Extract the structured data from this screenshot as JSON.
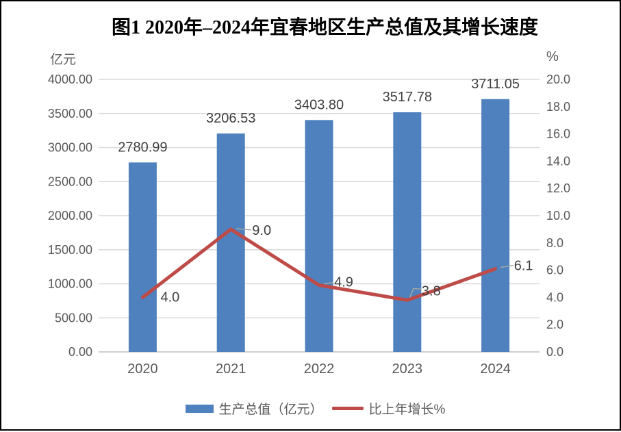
{
  "title": "图1 2020年–2024年宜春地区生产总值及其增长速度",
  "left_axis_unit": "亿元",
  "right_axis_unit": "%",
  "legend": {
    "bar_label": "生产总值（亿元）",
    "line_label": "比上年增长%"
  },
  "colors": {
    "bar": "#4E81BD",
    "line": "#BE4B48",
    "gridline": "#D9D9D9",
    "axis_line": "#BFBFBF",
    "tick_text": "#595959",
    "data_label_text": "#3F3F3F",
    "leader_line": "#A6A6A6",
    "title_text": "#000000"
  },
  "chart_data": {
    "type": "bar",
    "combo": "bar+line",
    "title": "图1 2020年–2024年宜春地区生产总值及其增长速度",
    "categories": [
      "2020",
      "2021",
      "2022",
      "2023",
      "2024"
    ],
    "series": [
      {
        "name": "生产总值（亿元）",
        "type": "bar",
        "axis": "left",
        "values": [
          2780.99,
          3206.53,
          3403.8,
          3517.78,
          3711.05
        ],
        "labels": [
          "2780.99",
          "3206.53",
          "3403.80",
          "3517.78",
          "3711.05"
        ]
      },
      {
        "name": "比上年增长%",
        "type": "line",
        "axis": "right",
        "values": [
          4.0,
          9.0,
          4.9,
          3.8,
          6.1
        ],
        "labels": [
          "4.0",
          "9.0",
          "4.9",
          "3.8",
          "6.1"
        ]
      }
    ],
    "left_axis": {
      "label": "亿元",
      "min": 0,
      "max": 4000,
      "step": 500,
      "tick_labels": [
        "4000.00",
        "3500.00",
        "3000.00",
        "2500.00",
        "2000.00",
        "1500.00",
        "1000.00",
        "500.00",
        "0.00"
      ]
    },
    "right_axis": {
      "label": "%",
      "min": 0,
      "max": 20,
      "step": 2,
      "tick_labels": [
        "20.0",
        "18.0",
        "16.0",
        "14.0",
        "12.0",
        "10.0",
        "8.0",
        "6.0",
        "4.0",
        "2.0",
        "0.0"
      ]
    },
    "grid": true,
    "legend_position": "bottom"
  }
}
